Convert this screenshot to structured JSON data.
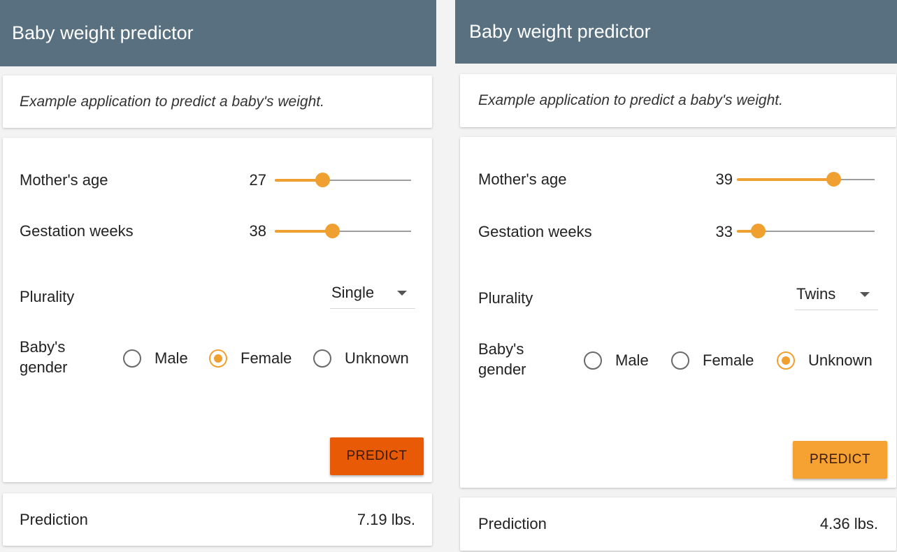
{
  "colors": {
    "appbar": "#58707f",
    "accent": "#f0a030",
    "predict_pressed": "#e85a05",
    "predict_normal": "#f5a233"
  },
  "panels": [
    {
      "title": "Baby weight predictor",
      "description": "Example application to predict a baby's weight.",
      "mother_age": {
        "label": "Mother's age",
        "value": "27",
        "fraction": 0.35
      },
      "gestation": {
        "label": "Gestation weeks",
        "value": "38",
        "fraction": 0.42
      },
      "plurality": {
        "label": "Plurality",
        "value": "Single"
      },
      "gender": {
        "label_line1": "Baby's",
        "label_line2": "gender",
        "options": [
          "Male",
          "Female",
          "Unknown"
        ],
        "selected": "Female"
      },
      "predict_label": "PREDICT",
      "predict_color": "#e85a05",
      "prediction": {
        "label": "Prediction",
        "value": "7.19 lbs."
      }
    },
    {
      "title": "Baby weight predictor",
      "description": "Example application to predict a baby's weight.",
      "mother_age": {
        "label": "Mother's age",
        "value": "39",
        "fraction": 0.7
      },
      "gestation": {
        "label": "Gestation weeks",
        "value": "33",
        "fraction": 0.15
      },
      "plurality": {
        "label": "Plurality",
        "value": "Twins"
      },
      "gender": {
        "label_line1": "Baby's",
        "label_line2": "gender",
        "options": [
          "Male",
          "Female",
          "Unknown"
        ],
        "selected": "Unknown"
      },
      "predict_label": "PREDICT",
      "predict_color": "#f5a233",
      "prediction": {
        "label": "Prediction",
        "value": "4.36 lbs."
      }
    }
  ]
}
